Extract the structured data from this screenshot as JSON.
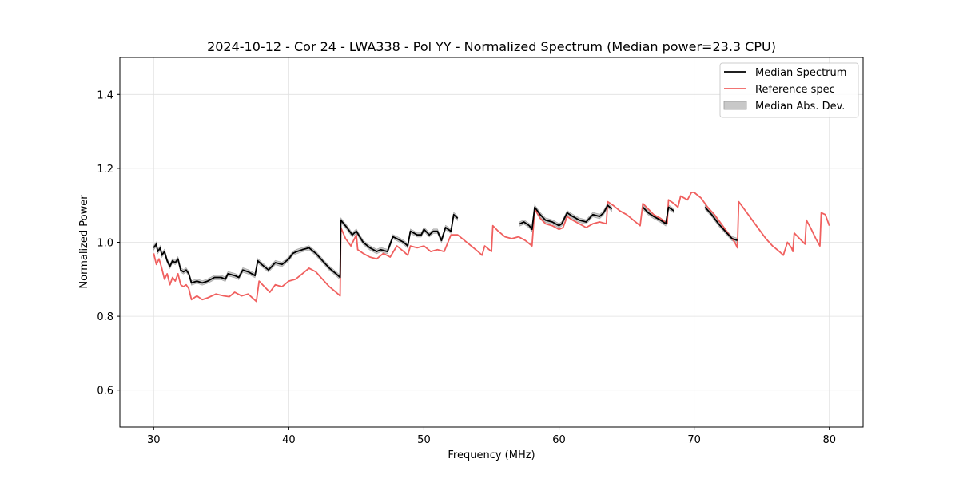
{
  "chart_data": {
    "type": "line",
    "title": "2024-10-12 - Cor 24 - LWA338 - Pol YY - Normalized Spectrum (Median power=23.3 CPU)",
    "xlabel": "Frequency (MHz)",
    "ylabel": "Normalized Power",
    "xlim": [
      27.5,
      82.5
    ],
    "ylim": [
      0.5,
      1.5
    ],
    "xticks": [
      30,
      40,
      50,
      60,
      70,
      80
    ],
    "yticks": [
      0.6,
      0.8,
      1.0,
      1.2,
      1.4
    ],
    "xtick_labels": [
      "30",
      "40",
      "50",
      "60",
      "70",
      "80"
    ],
    "ytick_labels": [
      "0.6",
      "0.8",
      "1.0",
      "1.2",
      "1.4"
    ],
    "grid": true,
    "legend_position": "top-right",
    "legend": [
      {
        "label": "Median Spectrum",
        "kind": "line",
        "color": "#000000"
      },
      {
        "label": "Reference spec",
        "kind": "line",
        "color": "#f0605f"
      },
      {
        "label": "Median Abs. Dev.",
        "kind": "patch",
        "color": "#c8c8c8"
      }
    ],
    "series": [
      {
        "name": "Reference spec",
        "color": "#f0605f",
        "segments": [
          [
            [
              30.0,
              0.97
            ],
            [
              30.2,
              0.94
            ],
            [
              30.4,
              0.955
            ],
            [
              30.6,
              0.93
            ],
            [
              30.8,
              0.9
            ],
            [
              31.0,
              0.915
            ],
            [
              31.2,
              0.885
            ],
            [
              31.4,
              0.905
            ],
            [
              31.6,
              0.895
            ],
            [
              31.8,
              0.915
            ],
            [
              32.0,
              0.885
            ],
            [
              32.2,
              0.88
            ],
            [
              32.4,
              0.885
            ],
            [
              32.6,
              0.875
            ],
            [
              32.8,
              0.845
            ],
            [
              33.2,
              0.855
            ],
            [
              33.6,
              0.845
            ],
            [
              34.0,
              0.85
            ],
            [
              34.6,
              0.86
            ],
            [
              35.2,
              0.855
            ],
            [
              35.6,
              0.853
            ],
            [
              36.0,
              0.865
            ],
            [
              36.5,
              0.855
            ],
            [
              37.0,
              0.86
            ],
            [
              37.6,
              0.84
            ],
            [
              37.8,
              0.895
            ],
            [
              38.2,
              0.88
            ],
            [
              38.6,
              0.865
            ],
            [
              39.0,
              0.885
            ],
            [
              39.5,
              0.88
            ],
            [
              40.0,
              0.895
            ],
            [
              40.5,
              0.9
            ],
            [
              41.0,
              0.915
            ],
            [
              41.5,
              0.93
            ],
            [
              42.0,
              0.92
            ],
            [
              42.5,
              0.9
            ],
            [
              43.0,
              0.88
            ],
            [
              43.5,
              0.865
            ],
            [
              43.8,
              0.855
            ],
            [
              43.85,
              1.04
            ],
            [
              44.2,
              1.01
            ],
            [
              44.6,
              0.99
            ],
            [
              45.0,
              1.02
            ],
            [
              45.1,
              0.98
            ],
            [
              45.5,
              0.97
            ],
            [
              46.0,
              0.96
            ],
            [
              46.5,
              0.955
            ],
            [
              47.0,
              0.97
            ],
            [
              47.5,
              0.96
            ],
            [
              48.0,
              0.99
            ],
            [
              48.5,
              0.975
            ],
            [
              48.8,
              0.965
            ],
            [
              49.0,
              0.99
            ],
            [
              49.5,
              0.985
            ],
            [
              50.0,
              0.99
            ],
            [
              50.5,
              0.975
            ],
            [
              51.0,
              0.98
            ],
            [
              51.5,
              0.975
            ],
            [
              52.0,
              1.02
            ],
            [
              52.5,
              1.02
            ],
            [
              53.0,
              1.005
            ],
            [
              53.5,
              0.99
            ],
            [
              54.0,
              0.975
            ],
            [
              54.3,
              0.965
            ],
            [
              54.5,
              0.99
            ],
            [
              55.0,
              0.975
            ],
            [
              55.1,
              1.045
            ],
            [
              55.5,
              1.03
            ],
            [
              56.0,
              1.015
            ],
            [
              56.5,
              1.01
            ],
            [
              57.0,
              1.015
            ],
            [
              57.5,
              1.005
            ],
            [
              58.0,
              0.99
            ],
            [
              58.2,
              1.09
            ],
            [
              58.6,
              1.065
            ],
            [
              59.0,
              1.05
            ],
            [
              59.5,
              1.045
            ],
            [
              60.0,
              1.035
            ],
            [
              60.3,
              1.04
            ],
            [
              60.6,
              1.07
            ],
            [
              61.0,
              1.06
            ],
            [
              61.5,
              1.05
            ],
            [
              62.0,
              1.04
            ],
            [
              62.5,
              1.05
            ],
            [
              63.0,
              1.055
            ],
            [
              63.5,
              1.05
            ],
            [
              63.6,
              1.11
            ],
            [
              64.0,
              1.1
            ],
            [
              64.5,
              1.085
            ],
            [
              65.0,
              1.075
            ],
            [
              65.5,
              1.06
            ],
            [
              66.0,
              1.045
            ],
            [
              66.2,
              1.105
            ],
            [
              66.6,
              1.09
            ],
            [
              67.0,
              1.075
            ],
            [
              67.5,
              1.065
            ],
            [
              68.0,
              1.05
            ],
            [
              68.1,
              1.115
            ],
            [
              68.5,
              1.105
            ],
            [
              68.8,
              1.095
            ],
            [
              69.0,
              1.125
            ],
            [
              69.5,
              1.115
            ],
            [
              69.8,
              1.135
            ],
            [
              70.0,
              1.135
            ],
            [
              70.5,
              1.12
            ],
            [
              71.0,
              1.095
            ],
            [
              71.5,
              1.075
            ],
            [
              72.0,
              1.05
            ],
            [
              72.5,
              1.025
            ],
            [
              73.0,
              1.0
            ],
            [
              73.2,
              0.985
            ],
            [
              73.3,
              1.11
            ],
            [
              73.8,
              1.085
            ],
            [
              74.3,
              1.06
            ],
            [
              74.8,
              1.035
            ],
            [
              75.3,
              1.01
            ],
            [
              75.8,
              0.99
            ],
            [
              76.3,
              0.975
            ],
            [
              76.6,
              0.965
            ],
            [
              76.9,
              1.0
            ],
            [
              77.2,
              0.985
            ],
            [
              77.3,
              0.975
            ],
            [
              77.4,
              1.025
            ],
            [
              77.8,
              1.01
            ],
            [
              78.2,
              0.995
            ],
            [
              78.3,
              1.06
            ],
            [
              78.6,
              1.04
            ],
            [
              79.0,
              1.01
            ],
            [
              79.3,
              0.99
            ],
            [
              79.4,
              1.08
            ],
            [
              79.7,
              1.075
            ],
            [
              80.0,
              1.045
            ]
          ]
        ]
      },
      {
        "name": "Median Spectrum",
        "color": "#000000",
        "segments": [
          [
            [
              30.0,
              0.985
            ],
            [
              30.2,
              0.995
            ],
            [
              30.3,
              0.975
            ],
            [
              30.5,
              0.985
            ],
            [
              30.6,
              0.965
            ],
            [
              30.8,
              0.975
            ],
            [
              31.0,
              0.95
            ],
            [
              31.2,
              0.935
            ],
            [
              31.4,
              0.95
            ],
            [
              31.6,
              0.945
            ],
            [
              31.8,
              0.955
            ],
            [
              32.0,
              0.925
            ],
            [
              32.2,
              0.92
            ],
            [
              32.4,
              0.925
            ],
            [
              32.6,
              0.915
            ],
            [
              32.8,
              0.89
            ],
            [
              33.2,
              0.895
            ],
            [
              33.6,
              0.89
            ],
            [
              34.0,
              0.895
            ],
            [
              34.5,
              0.905
            ],
            [
              35.0,
              0.905
            ],
            [
              35.3,
              0.9
            ],
            [
              35.5,
              0.915
            ],
            [
              36.0,
              0.91
            ],
            [
              36.3,
              0.905
            ],
            [
              36.6,
              0.925
            ],
            [
              37.0,
              0.92
            ],
            [
              37.5,
              0.91
            ],
            [
              37.7,
              0.95
            ],
            [
              38.0,
              0.94
            ],
            [
              38.5,
              0.925
            ],
            [
              39.0,
              0.945
            ],
            [
              39.5,
              0.94
            ],
            [
              40.0,
              0.955
            ],
            [
              40.3,
              0.97
            ],
            [
              40.6,
              0.975
            ],
            [
              41.0,
              0.98
            ],
            [
              41.5,
              0.985
            ],
            [
              42.0,
              0.97
            ],
            [
              42.5,
              0.95
            ],
            [
              43.0,
              0.93
            ],
            [
              43.5,
              0.915
            ],
            [
              43.8,
              0.905
            ],
            [
              43.85,
              1.06
            ],
            [
              44.3,
              1.04
            ],
            [
              44.7,
              1.02
            ],
            [
              45.0,
              1.03
            ],
            [
              45.5,
              1.0
            ],
            [
              46.0,
              0.985
            ],
            [
              46.5,
              0.975
            ],
            [
              46.8,
              0.98
            ],
            [
              47.3,
              0.975
            ],
            [
              47.7,
              1.015
            ],
            [
              48.0,
              1.01
            ],
            [
              48.5,
              1.0
            ],
            [
              48.8,
              0.99
            ],
            [
              49.0,
              1.03
            ],
            [
              49.5,
              1.02
            ],
            [
              49.8,
              1.02
            ],
            [
              50.0,
              1.035
            ],
            [
              50.4,
              1.02
            ],
            [
              50.7,
              1.03
            ],
            [
              51.0,
              1.03
            ],
            [
              51.3,
              1.005
            ],
            [
              51.6,
              1.04
            ],
            [
              52.0,
              1.03
            ],
            [
              52.2,
              1.075
            ],
            [
              52.5,
              1.065
            ]
          ],
          [
            [
              57.1,
              1.05
            ],
            [
              57.4,
              1.055
            ],
            [
              57.8,
              1.045
            ],
            [
              58.0,
              1.035
            ],
            [
              58.2,
              1.095
            ],
            [
              58.6,
              1.075
            ],
            [
              59.0,
              1.06
            ],
            [
              59.5,
              1.055
            ],
            [
              60.0,
              1.045
            ],
            [
              60.2,
              1.05
            ],
            [
              60.6,
              1.08
            ],
            [
              61.0,
              1.07
            ],
            [
              61.5,
              1.06
            ],
            [
              62.0,
              1.055
            ],
            [
              62.5,
              1.075
            ],
            [
              63.0,
              1.07
            ],
            [
              63.3,
              1.08
            ],
            [
              63.6,
              1.1
            ],
            [
              63.9,
              1.09
            ]
          ],
          [
            [
              66.2,
              1.095
            ],
            [
              66.6,
              1.08
            ],
            [
              67.0,
              1.07
            ],
            [
              67.5,
              1.06
            ],
            [
              67.9,
              1.05
            ],
            [
              68.1,
              1.095
            ],
            [
              68.5,
              1.085
            ]
          ],
          [
            [
              70.8,
              1.095
            ],
            [
              71.3,
              1.075
            ],
            [
              71.8,
              1.05
            ],
            [
              72.3,
              1.03
            ],
            [
              72.8,
              1.01
            ],
            [
              73.2,
              1.005
            ]
          ]
        ]
      }
    ],
    "mad_halfwidth": 0.006
  }
}
